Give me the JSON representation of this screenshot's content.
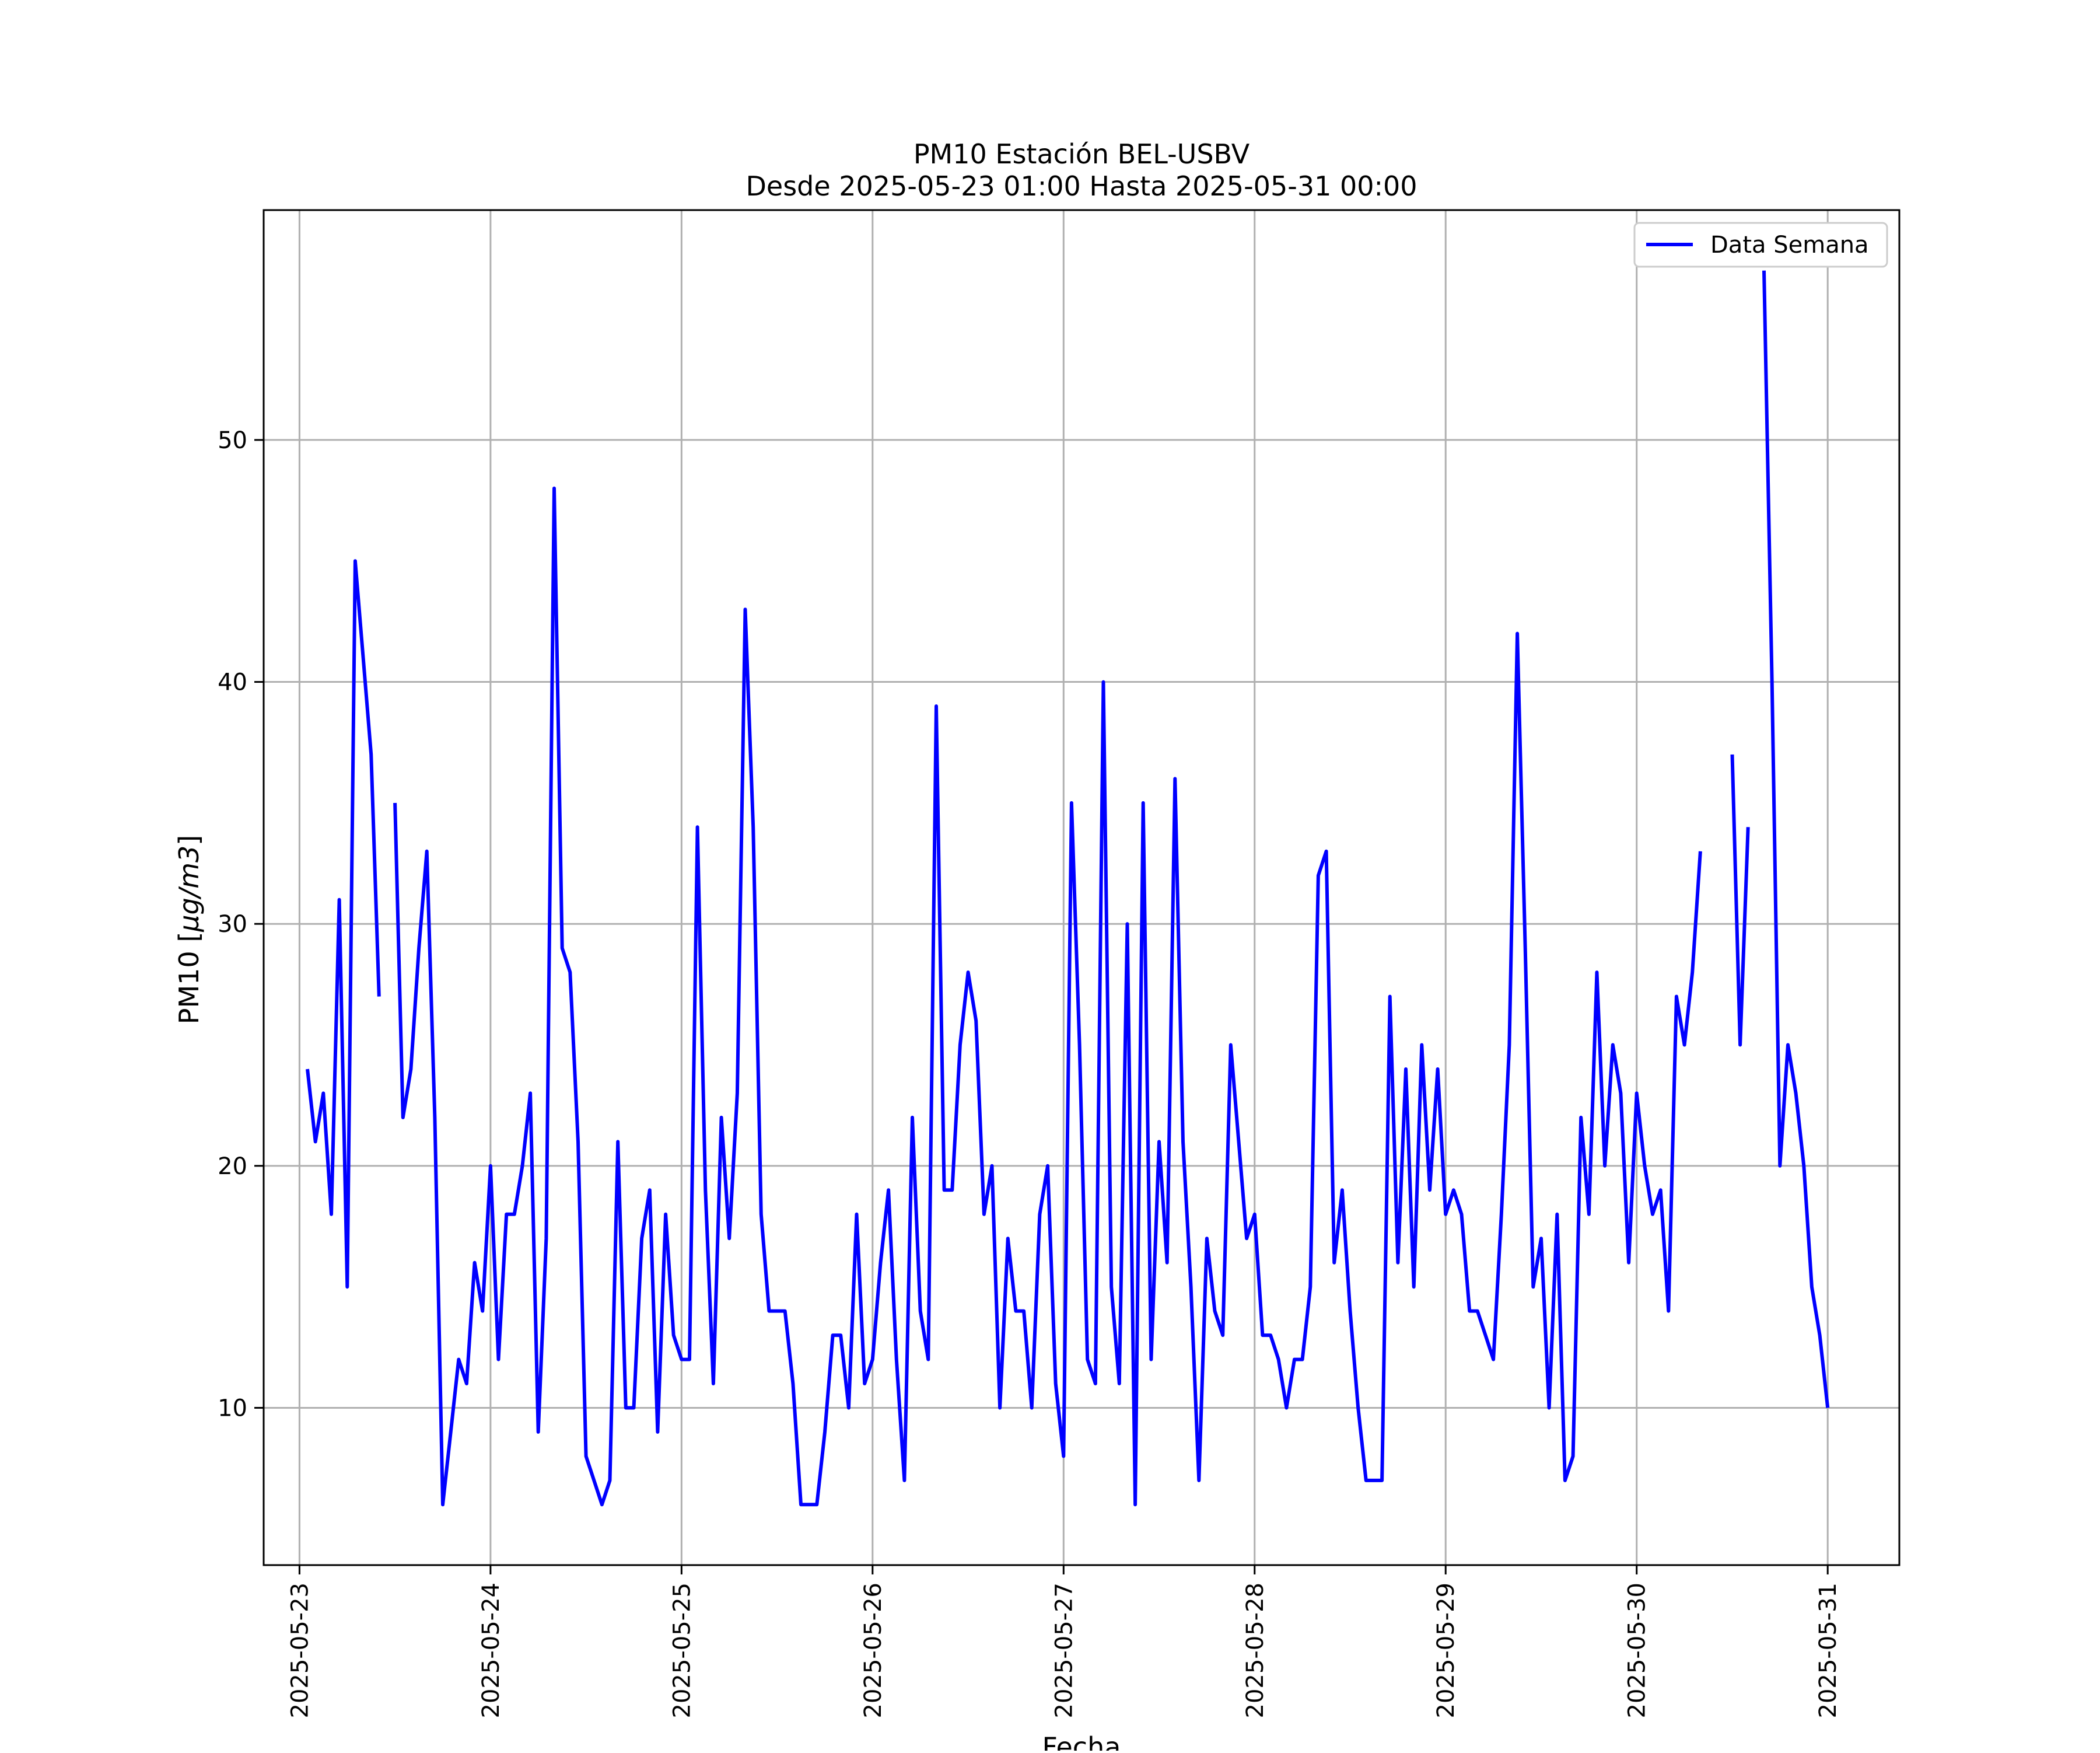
{
  "chart_data": {
    "type": "line",
    "title": "PM10 Estación BEL-USBV",
    "subtitle": "Desde 2025-05-23 01:00 Hasta 2025-05-31 00:00",
    "xlabel": "Fecha",
    "ylabel": "PM10 [μg/m3]",
    "xlim": [
      "2025-05-22 19:30",
      "2025-05-31 09:00"
    ],
    "ylim": [
      3.5,
      59.5
    ],
    "x_ticks": [
      "2025-05-23",
      "2025-05-24",
      "2025-05-25",
      "2025-05-26",
      "2025-05-27",
      "2025-05-28",
      "2025-05-29",
      "2025-05-30",
      "2025-05-31"
    ],
    "y_ticks": [
      10,
      20,
      30,
      40,
      50
    ],
    "grid": true,
    "legend_position": "upper right",
    "line_color": "#0000ff",
    "series": [
      {
        "name": "Data Semana",
        "points": [
          [
            "2025-05-23 01:00",
            24
          ],
          [
            "2025-05-23 02:00",
            21
          ],
          [
            "2025-05-23 03:00",
            23
          ],
          [
            "2025-05-23 04:00",
            18
          ],
          [
            "2025-05-23 05:00",
            31
          ],
          [
            "2025-05-23 06:00",
            15
          ],
          [
            "2025-05-23 07:00",
            45
          ],
          [
            "2025-05-23 08:00",
            41
          ],
          [
            "2025-05-23 09:00",
            37
          ],
          [
            "2025-05-23 10:00",
            27
          ],
          [
            "2025-05-23 11:00",
            null
          ],
          [
            "2025-05-23 12:00",
            35
          ],
          [
            "2025-05-23 13:00",
            22
          ],
          [
            "2025-05-23 14:00",
            24
          ],
          [
            "2025-05-23 15:00",
            29
          ],
          [
            "2025-05-23 16:00",
            33
          ],
          [
            "2025-05-23 17:00",
            22
          ],
          [
            "2025-05-23 18:00",
            6
          ],
          [
            "2025-05-23 19:00",
            9
          ],
          [
            "2025-05-23 20:00",
            12
          ],
          [
            "2025-05-23 21:00",
            11
          ],
          [
            "2025-05-23 22:00",
            16
          ],
          [
            "2025-05-23 23:00",
            14
          ],
          [
            "2025-05-24 00:00",
            20
          ],
          [
            "2025-05-24 01:00",
            12
          ],
          [
            "2025-05-24 02:00",
            18
          ],
          [
            "2025-05-24 03:00",
            18
          ],
          [
            "2025-05-24 04:00",
            20
          ],
          [
            "2025-05-24 05:00",
            23
          ],
          [
            "2025-05-24 06:00",
            9
          ],
          [
            "2025-05-24 07:00",
            17
          ],
          [
            "2025-05-24 08:00",
            48
          ],
          [
            "2025-05-24 09:00",
            29
          ],
          [
            "2025-05-24 10:00",
            28
          ],
          [
            "2025-05-24 11:00",
            21
          ],
          [
            "2025-05-24 12:00",
            8
          ],
          [
            "2025-05-24 13:00",
            7
          ],
          [
            "2025-05-24 14:00",
            6
          ],
          [
            "2025-05-24 15:00",
            7
          ],
          [
            "2025-05-24 16:00",
            21
          ],
          [
            "2025-05-24 17:00",
            10
          ],
          [
            "2025-05-24 18:00",
            10
          ],
          [
            "2025-05-24 19:00",
            17
          ],
          [
            "2025-05-24 20:00",
            19
          ],
          [
            "2025-05-24 21:00",
            9
          ],
          [
            "2025-05-24 22:00",
            18
          ],
          [
            "2025-05-24 23:00",
            13
          ],
          [
            "2025-05-25 00:00",
            12
          ],
          [
            "2025-05-25 01:00",
            12
          ],
          [
            "2025-05-25 02:00",
            34
          ],
          [
            "2025-05-25 03:00",
            19
          ],
          [
            "2025-05-25 04:00",
            11
          ],
          [
            "2025-05-25 05:00",
            22
          ],
          [
            "2025-05-25 06:00",
            17
          ],
          [
            "2025-05-25 07:00",
            23
          ],
          [
            "2025-05-25 08:00",
            43
          ],
          [
            "2025-05-25 09:00",
            34
          ],
          [
            "2025-05-25 10:00",
            18
          ],
          [
            "2025-05-25 11:00",
            14
          ],
          [
            "2025-05-25 12:00",
            14
          ],
          [
            "2025-05-25 13:00",
            14
          ],
          [
            "2025-05-25 14:00",
            11
          ],
          [
            "2025-05-25 15:00",
            6
          ],
          [
            "2025-05-25 16:00",
            6
          ],
          [
            "2025-05-25 17:00",
            6
          ],
          [
            "2025-05-25 18:00",
            9
          ],
          [
            "2025-05-25 19:00",
            13
          ],
          [
            "2025-05-25 20:00",
            13
          ],
          [
            "2025-05-25 21:00",
            10
          ],
          [
            "2025-05-25 22:00",
            18
          ],
          [
            "2025-05-25 23:00",
            11
          ],
          [
            "2025-05-26 00:00",
            12
          ],
          [
            "2025-05-26 01:00",
            16
          ],
          [
            "2025-05-26 02:00",
            19
          ],
          [
            "2025-05-26 03:00",
            12
          ],
          [
            "2025-05-26 04:00",
            7
          ],
          [
            "2025-05-26 05:00",
            22
          ],
          [
            "2025-05-26 06:00",
            14
          ],
          [
            "2025-05-26 07:00",
            12
          ],
          [
            "2025-05-26 08:00",
            39
          ],
          [
            "2025-05-26 09:00",
            19
          ],
          [
            "2025-05-26 10:00",
            19
          ],
          [
            "2025-05-26 11:00",
            25
          ],
          [
            "2025-05-26 12:00",
            28
          ],
          [
            "2025-05-26 13:00",
            26
          ],
          [
            "2025-05-26 14:00",
            18
          ],
          [
            "2025-05-26 15:00",
            20
          ],
          [
            "2025-05-26 16:00",
            10
          ],
          [
            "2025-05-26 17:00",
            17
          ],
          [
            "2025-05-26 18:00",
            14
          ],
          [
            "2025-05-26 19:00",
            14
          ],
          [
            "2025-05-26 20:00",
            10
          ],
          [
            "2025-05-26 21:00",
            18
          ],
          [
            "2025-05-26 22:00",
            20
          ],
          [
            "2025-05-26 23:00",
            11
          ],
          [
            "2025-05-27 00:00",
            8
          ],
          [
            "2025-05-27 01:00",
            35
          ],
          [
            "2025-05-27 02:00",
            25
          ],
          [
            "2025-05-27 03:00",
            12
          ],
          [
            "2025-05-27 04:00",
            11
          ],
          [
            "2025-05-27 05:00",
            40
          ],
          [
            "2025-05-27 06:00",
            15
          ],
          [
            "2025-05-27 07:00",
            11
          ],
          [
            "2025-05-27 08:00",
            30
          ],
          [
            "2025-05-27 09:00",
            6
          ],
          [
            "2025-05-27 10:00",
            35
          ],
          [
            "2025-05-27 11:00",
            12
          ],
          [
            "2025-05-27 12:00",
            21
          ],
          [
            "2025-05-27 13:00",
            16
          ],
          [
            "2025-05-27 14:00",
            36
          ],
          [
            "2025-05-27 15:00",
            21
          ],
          [
            "2025-05-27 16:00",
            15
          ],
          [
            "2025-05-27 17:00",
            7
          ],
          [
            "2025-05-27 18:00",
            17
          ],
          [
            "2025-05-27 19:00",
            14
          ],
          [
            "2025-05-27 20:00",
            13
          ],
          [
            "2025-05-27 21:00",
            25
          ],
          [
            "2025-05-27 22:00",
            21
          ],
          [
            "2025-05-27 23:00",
            17
          ],
          [
            "2025-05-28 00:00",
            18
          ],
          [
            "2025-05-28 01:00",
            13
          ],
          [
            "2025-05-28 02:00",
            13
          ],
          [
            "2025-05-28 03:00",
            12
          ],
          [
            "2025-05-28 04:00",
            10
          ],
          [
            "2025-05-28 05:00",
            12
          ],
          [
            "2025-05-28 06:00",
            12
          ],
          [
            "2025-05-28 07:00",
            15
          ],
          [
            "2025-05-28 08:00",
            32
          ],
          [
            "2025-05-28 09:00",
            33
          ],
          [
            "2025-05-28 10:00",
            16
          ],
          [
            "2025-05-28 11:00",
            19
          ],
          [
            "2025-05-28 12:00",
            14
          ],
          [
            "2025-05-28 13:00",
            10
          ],
          [
            "2025-05-28 14:00",
            7
          ],
          [
            "2025-05-28 15:00",
            7
          ],
          [
            "2025-05-28 16:00",
            7
          ],
          [
            "2025-05-28 17:00",
            27
          ],
          [
            "2025-05-28 18:00",
            16
          ],
          [
            "2025-05-28 19:00",
            24
          ],
          [
            "2025-05-28 20:00",
            15
          ],
          [
            "2025-05-28 21:00",
            25
          ],
          [
            "2025-05-28 22:00",
            19
          ],
          [
            "2025-05-28 23:00",
            24
          ],
          [
            "2025-05-29 00:00",
            18
          ],
          [
            "2025-05-29 01:00",
            19
          ],
          [
            "2025-05-29 02:00",
            18
          ],
          [
            "2025-05-29 03:00",
            14
          ],
          [
            "2025-05-29 04:00",
            14
          ],
          [
            "2025-05-29 05:00",
            13
          ],
          [
            "2025-05-29 06:00",
            12
          ],
          [
            "2025-05-29 07:00",
            18
          ],
          [
            "2025-05-29 08:00",
            25
          ],
          [
            "2025-05-29 09:00",
            42
          ],
          [
            "2025-05-29 10:00",
            29
          ],
          [
            "2025-05-29 11:00",
            15
          ],
          [
            "2025-05-29 12:00",
            17
          ],
          [
            "2025-05-29 13:00",
            10
          ],
          [
            "2025-05-29 14:00",
            18
          ],
          [
            "2025-05-29 15:00",
            7
          ],
          [
            "2025-05-29 16:00",
            8
          ],
          [
            "2025-05-29 17:00",
            22
          ],
          [
            "2025-05-29 18:00",
            18
          ],
          [
            "2025-05-29 19:00",
            28
          ],
          [
            "2025-05-29 20:00",
            20
          ],
          [
            "2025-05-29 21:00",
            25
          ],
          [
            "2025-05-29 22:00",
            23
          ],
          [
            "2025-05-29 23:00",
            16
          ],
          [
            "2025-05-30 00:00",
            23
          ],
          [
            "2025-05-30 01:00",
            20
          ],
          [
            "2025-05-30 02:00",
            18
          ],
          [
            "2025-05-30 03:00",
            19
          ],
          [
            "2025-05-30 04:00",
            14
          ],
          [
            "2025-05-30 05:00",
            27
          ],
          [
            "2025-05-30 06:00",
            25
          ],
          [
            "2025-05-30 07:00",
            28
          ],
          [
            "2025-05-30 08:00",
            33
          ],
          [
            "2025-05-30 09:00",
            null
          ],
          [
            "2025-05-30 10:00",
            null
          ],
          [
            "2025-05-30 11:00",
            null
          ],
          [
            "2025-05-30 12:00",
            37
          ],
          [
            "2025-05-30 13:00",
            25
          ],
          [
            "2025-05-30 14:00",
            34
          ],
          [
            "2025-05-30 15:00",
            null
          ],
          [
            "2025-05-30 16:00",
            57
          ],
          [
            "2025-05-30 17:00",
            40
          ],
          [
            "2025-05-30 18:00",
            20
          ],
          [
            "2025-05-30 19:00",
            25
          ],
          [
            "2025-05-30 20:00",
            23
          ],
          [
            "2025-05-30 21:00",
            20
          ],
          [
            "2025-05-30 22:00",
            15
          ],
          [
            "2025-05-30 23:00",
            13
          ],
          [
            "2025-05-31 00:00",
            10
          ]
        ]
      }
    ]
  }
}
